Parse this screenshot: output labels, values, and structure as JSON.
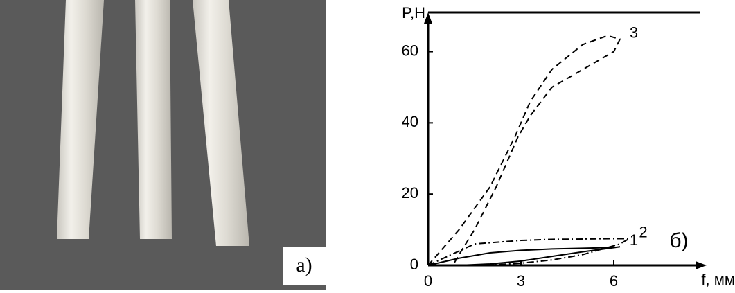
{
  "photo_label": "а)",
  "chart_data": {
    "type": "line",
    "panel_label": "б)",
    "x_label": "f, мм",
    "y_label": "P,H",
    "xlim": [
      0,
      9
    ],
    "ylim": [
      0,
      71
    ],
    "xticks": [
      0,
      3,
      6
    ],
    "yticks": [
      0,
      20,
      40,
      60
    ],
    "series": [
      {
        "name": "1",
        "color": "#000000",
        "dash": "solid",
        "x": [
          0,
          1,
          2,
          3,
          4,
          5,
          6,
          6.2,
          5,
          4,
          3,
          2,
          1
        ],
        "values": [
          0,
          2,
          3.5,
          4.2,
          4.6,
          4.8,
          5,
          5.2,
          3.8,
          2.5,
          1.2,
          0.4,
          0
        ]
      },
      {
        "name": "2",
        "color": "#000000",
        "dash": "dashdot",
        "x": [
          0,
          1,
          1.5,
          3,
          4,
          6,
          6.5,
          6.2,
          5,
          4,
          3,
          2,
          1.5
        ],
        "values": [
          0,
          4,
          6,
          7,
          7.3,
          7.5,
          7.5,
          6,
          3,
          1.5,
          0.6,
          0.1,
          0
        ]
      },
      {
        "name": "3",
        "color": "#000000",
        "dash": "dashed",
        "x": [
          0,
          1,
          2,
          2.8,
          3.3,
          4,
          5,
          5.8,
          6.2,
          6,
          5,
          4,
          3.3,
          2.9,
          2.2,
          1.5,
          1,
          0.8
        ],
        "values": [
          0,
          10,
          22,
          36,
          46,
          55,
          62,
          64.5,
          63.5,
          60,
          55,
          50,
          42,
          36,
          22,
          10,
          3,
          0
        ]
      }
    ]
  }
}
